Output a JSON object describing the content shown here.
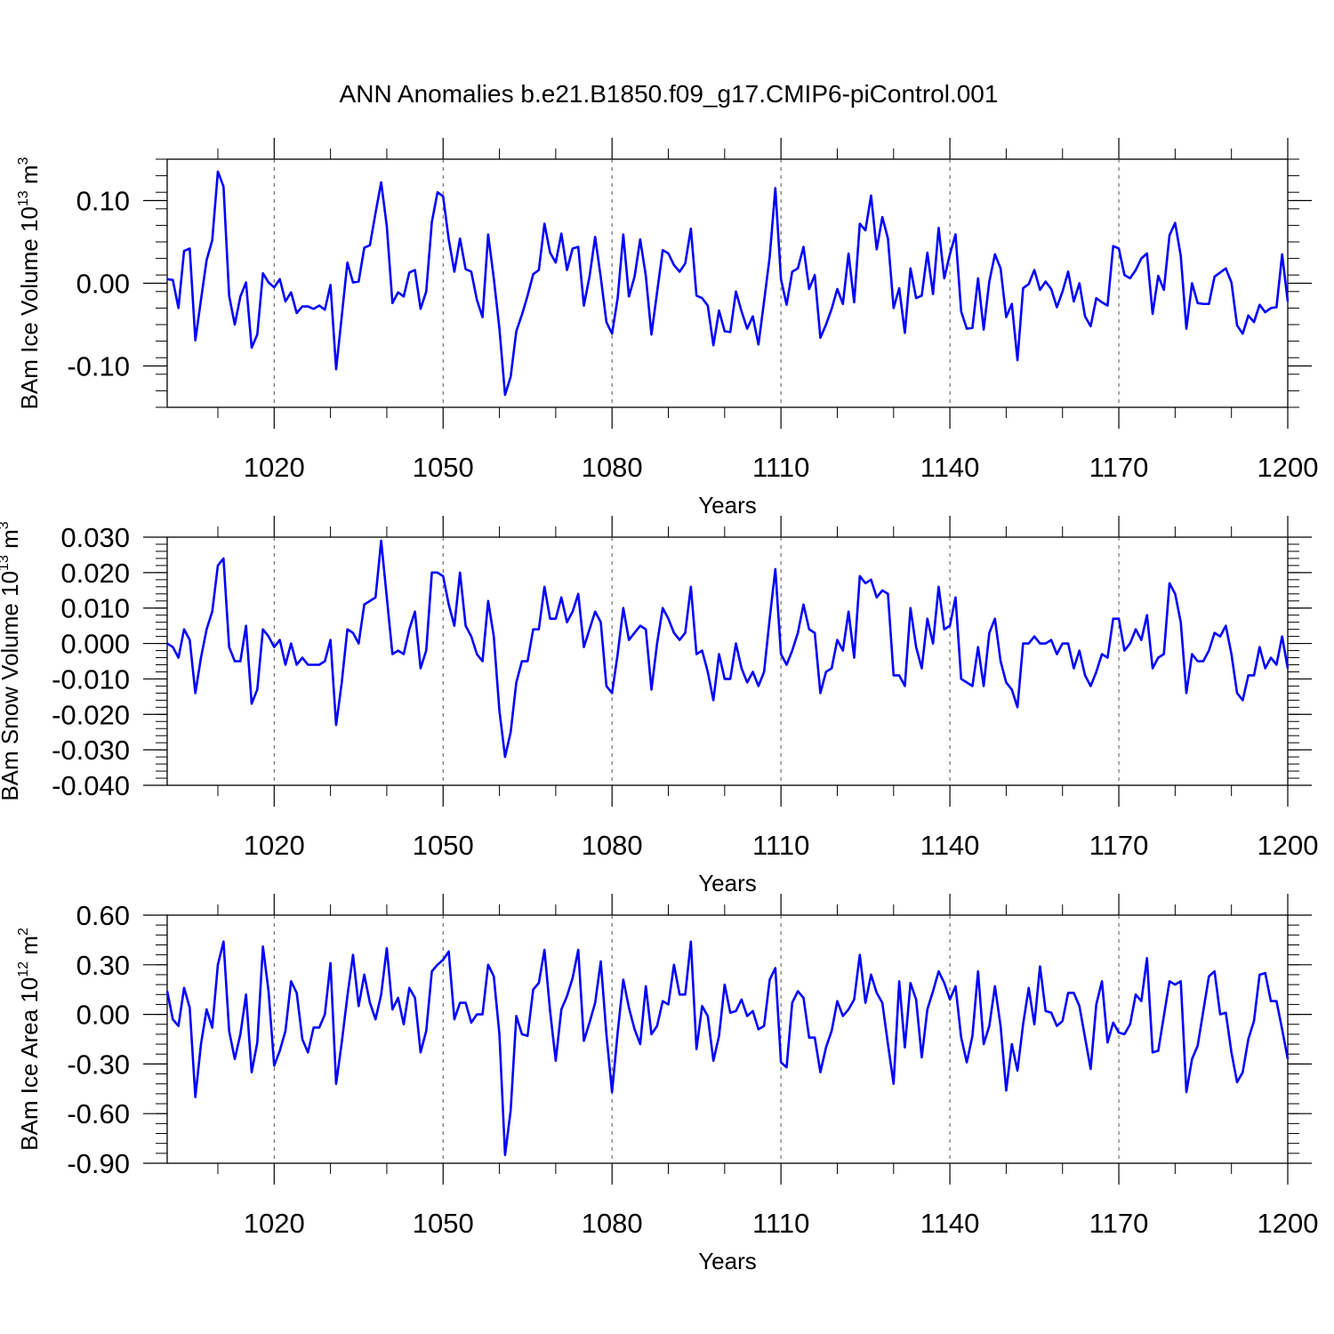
{
  "title": "ANN Anomalies b.e21.B1850.f09_g17.CMIP6-piControl.001",
  "colors": {
    "line": "#0000ff",
    "axis": "#000000",
    "grid": "#555555"
  },
  "chart_data": [
    {
      "type": "line",
      "name": "ice-volume",
      "ylabel_main": "BAm Ice Volume 10",
      "ylabel_exp": "13",
      "ylabel_unit": "m",
      "ylabel_unit_exp": "3",
      "xlabel": "Years",
      "xlim": [
        1001,
        1200
      ],
      "ylim": [
        -0.15,
        0.15
      ],
      "x_ticks": [
        "1020",
        "1050",
        "1080",
        "1110",
        "1140",
        "1170",
        "1200"
      ],
      "y_ticks": [
        "0.10",
        "0.00",
        "-0.10"
      ],
      "x_start": 1001,
      "series": [
        {
          "name": "BAm Ice Volume",
          "values": [
            0.005,
            0.004,
            -0.03,
            0.039,
            0.042,
            -0.069,
            -0.02,
            0.028,
            0.052,
            0.135,
            0.117,
            -0.015,
            -0.05,
            -0.016,
            0.001,
            -0.078,
            -0.062,
            0.012,
            0.001,
            -0.005,
            0.005,
            -0.022,
            -0.011,
            -0.036,
            -0.028,
            -0.028,
            -0.031,
            -0.027,
            -0.032,
            -0.002,
            -0.104,
            -0.04,
            0.025,
            0.001,
            0.002,
            0.043,
            0.046,
            0.085,
            0.122,
            0.069,
            -0.024,
            -0.011,
            -0.016,
            0.013,
            0.016,
            -0.031,
            -0.01,
            0.074,
            0.11,
            0.105,
            0.053,
            0.014,
            0.054,
            0.017,
            0.014,
            -0.02,
            -0.041,
            0.059,
            0.006,
            -0.055,
            -0.135,
            -0.113,
            -0.058,
            -0.038,
            -0.015,
            0.011,
            0.016,
            0.072,
            0.037,
            0.025,
            0.06,
            0.016,
            0.042,
            0.044,
            -0.027,
            0.008,
            0.056,
            0.007,
            -0.047,
            -0.061,
            -0.018,
            0.059,
            -0.016,
            0.008,
            0.053,
            0.009,
            -0.062,
            -0.011,
            0.04,
            0.036,
            0.022,
            0.014,
            0.024,
            0.066,
            -0.015,
            -0.018,
            -0.027,
            -0.075,
            -0.033,
            -0.058,
            -0.059,
            -0.01,
            -0.034,
            -0.055,
            -0.04,
            -0.074,
            -0.022,
            0.032,
            0.115,
            0.005,
            -0.026,
            0.014,
            0.018,
            0.044,
            -0.007,
            0.01,
            -0.066,
            -0.05,
            -0.031,
            -0.007,
            -0.025,
            0.036,
            -0.023,
            0.072,
            0.064,
            0.106,
            0.041,
            0.08,
            0.054,
            -0.03,
            -0.006,
            -0.06,
            0.018,
            -0.018,
            -0.015,
            0.037,
            -0.013,
            0.067,
            0.006,
            0.035,
            0.059,
            -0.034,
            -0.055,
            -0.054,
            0.006,
            -0.056,
            0.002,
            0.035,
            0.018,
            -0.041,
            -0.025,
            -0.093,
            -0.006,
            -0.001,
            0.016,
            -0.008,
            0.002,
            -0.007,
            -0.029,
            -0.01,
            0.014,
            -0.022,
            0.0,
            -0.04,
            -0.052,
            -0.018,
            -0.023,
            -0.027,
            0.045,
            0.042,
            0.01,
            0.006,
            0.016,
            0.03,
            0.036,
            -0.037,
            0.009,
            -0.008,
            0.058,
            0.073,
            0.033,
            -0.055,
            0.0,
            -0.024,
            -0.025,
            -0.025,
            0.008,
            0.013,
            0.018,
            0.001,
            -0.051,
            -0.061,
            -0.039,
            -0.047,
            -0.026,
            -0.035,
            -0.03,
            -0.029,
            0.035,
            -0.022
          ]
        }
      ]
    },
    {
      "type": "line",
      "name": "snow-volume",
      "ylabel_main": "BAm Snow Volume 10",
      "ylabel_exp": "13",
      "ylabel_unit": "m",
      "ylabel_unit_exp": "3",
      "xlabel": "Years",
      "xlim": [
        1001,
        1200
      ],
      "ylim": [
        -0.04,
        0.03
      ],
      "x_ticks": [
        "1020",
        "1050",
        "1080",
        "1110",
        "1140",
        "1170",
        "1200"
      ],
      "y_ticks": [
        "0.030",
        "0.020",
        "0.010",
        "0.000",
        "-0.010",
        "-0.020",
        "-0.030",
        "-0.040"
      ],
      "x_start": 1001,
      "series": [
        {
          "name": "BAm Snow Volume",
          "values": [
            0.0,
            -0.001,
            -0.004,
            0.004,
            0.001,
            -0.014,
            -0.004,
            0.004,
            0.009,
            0.022,
            0.024,
            -0.001,
            -0.005,
            -0.005,
            0.005,
            -0.017,
            -0.013,
            0.004,
            0.002,
            -0.001,
            0.001,
            -0.006,
            0.0,
            -0.006,
            -0.004,
            -0.006,
            -0.006,
            -0.006,
            -0.005,
            0.001,
            -0.023,
            -0.011,
            0.004,
            0.003,
            0.0,
            0.011,
            0.012,
            0.013,
            0.029,
            0.013,
            -0.003,
            -0.002,
            -0.003,
            0.004,
            0.009,
            -0.007,
            -0.002,
            0.02,
            0.02,
            0.019,
            0.011,
            0.005,
            0.02,
            0.005,
            0.002,
            -0.003,
            -0.005,
            0.012,
            0.002,
            -0.019,
            -0.032,
            -0.025,
            -0.011,
            -0.005,
            -0.005,
            0.004,
            0.004,
            0.016,
            0.007,
            0.007,
            0.013,
            0.006,
            0.009,
            0.014,
            -0.001,
            0.004,
            0.009,
            0.006,
            -0.012,
            -0.014,
            -0.003,
            0.01,
            0.001,
            0.003,
            0.005,
            0.004,
            -0.013,
            0.0,
            0.01,
            0.007,
            0.003,
            0.001,
            0.003,
            0.016,
            -0.003,
            -0.002,
            -0.008,
            -0.016,
            -0.003,
            -0.01,
            -0.01,
            0.0,
            -0.007,
            -0.011,
            -0.008,
            -0.012,
            -0.008,
            0.007,
            0.021,
            -0.003,
            -0.006,
            -0.002,
            0.003,
            0.011,
            0.004,
            0.003,
            -0.014,
            -0.008,
            -0.007,
            0.001,
            -0.002,
            0.009,
            -0.004,
            0.019,
            0.017,
            0.018,
            0.013,
            0.015,
            0.014,
            -0.009,
            -0.009,
            -0.012,
            0.01,
            -0.001,
            -0.007,
            0.007,
            0.0,
            0.016,
            0.004,
            0.005,
            0.013,
            -0.01,
            -0.011,
            -0.012,
            -0.001,
            -0.012,
            0.003,
            0.007,
            -0.005,
            -0.011,
            -0.013,
            -0.018,
            0.0,
            0.0,
            0.002,
            0.0,
            0.0,
            0.001,
            -0.003,
            0.0,
            0.0,
            -0.007,
            -0.002,
            -0.009,
            -0.012,
            -0.008,
            -0.003,
            -0.004,
            0.007,
            0.007,
            -0.002,
            0.0,
            0.004,
            0.001,
            0.008,
            -0.007,
            -0.004,
            -0.003,
            0.017,
            0.014,
            0.006,
            -0.014,
            -0.003,
            -0.005,
            -0.005,
            -0.002,
            0.003,
            0.002,
            0.005,
            -0.003,
            -0.014,
            -0.016,
            -0.009,
            -0.009,
            -0.001,
            -0.007,
            -0.004,
            -0.006,
            0.002,
            -0.007
          ]
        }
      ]
    },
    {
      "type": "line",
      "name": "ice-area",
      "ylabel_main": "BAm Ice Area 10",
      "ylabel_exp": "12",
      "ylabel_unit": "m",
      "ylabel_unit_exp": "2",
      "xlabel": "Years",
      "xlim": [
        1001,
        1200
      ],
      "ylim": [
        -0.9,
        0.6
      ],
      "x_ticks": [
        "1020",
        "1050",
        "1080",
        "1110",
        "1140",
        "1170",
        "1200"
      ],
      "y_ticks": [
        "0.60",
        "0.30",
        "0.00",
        "-0.30",
        "-0.60",
        "-0.90"
      ],
      "x_start": 1001,
      "series": [
        {
          "name": "BAm Ice Area",
          "values": [
            0.14,
            -0.03,
            -0.07,
            0.16,
            0.04,
            -0.5,
            -0.18,
            0.03,
            -0.08,
            0.3,
            0.44,
            -0.1,
            -0.27,
            -0.12,
            0.12,
            -0.35,
            -0.17,
            0.41,
            0.14,
            -0.31,
            -0.22,
            -0.1,
            0.2,
            0.13,
            -0.15,
            -0.23,
            -0.08,
            -0.08,
            0.0,
            0.31,
            -0.42,
            -0.17,
            0.11,
            0.36,
            0.05,
            0.24,
            0.07,
            -0.03,
            0.12,
            0.4,
            0.03,
            0.1,
            -0.06,
            0.16,
            0.1,
            -0.23,
            -0.1,
            0.26,
            0.3,
            0.33,
            0.38,
            -0.03,
            0.07,
            0.07,
            -0.05,
            0.0,
            0.0,
            0.3,
            0.23,
            -0.12,
            -0.85,
            -0.58,
            -0.01,
            -0.12,
            -0.13,
            0.15,
            0.19,
            0.39,
            0.02,
            -0.28,
            0.03,
            0.11,
            0.22,
            0.39,
            -0.16,
            -0.05,
            0.07,
            0.32,
            -0.12,
            -0.47,
            -0.11,
            0.21,
            0.04,
            -0.09,
            -0.18,
            0.17,
            -0.12,
            -0.07,
            0.08,
            0.06,
            0.3,
            0.12,
            0.12,
            0.44,
            -0.21,
            0.05,
            -0.01,
            -0.28,
            -0.13,
            0.18,
            0.01,
            0.02,
            0.09,
            -0.01,
            0.02,
            -0.09,
            -0.07,
            0.21,
            0.28,
            -0.29,
            -0.32,
            0.07,
            0.14,
            0.1,
            -0.14,
            -0.14,
            -0.35,
            -0.2,
            -0.1,
            0.08,
            -0.01,
            0.03,
            0.09,
            0.36,
            0.07,
            0.24,
            0.13,
            0.07,
            -0.18,
            -0.42,
            0.2,
            -0.2,
            0.19,
            0.09,
            -0.26,
            0.03,
            0.14,
            0.26,
            0.19,
            0.09,
            0.17,
            -0.14,
            -0.29,
            -0.13,
            0.26,
            -0.18,
            -0.07,
            0.17,
            -0.07,
            -0.46,
            -0.18,
            -0.34,
            -0.06,
            0.16,
            -0.06,
            0.29,
            0.02,
            0.01,
            -0.07,
            -0.04,
            0.13,
            0.13,
            0.05,
            -0.14,
            -0.33,
            0.06,
            0.2,
            -0.17,
            -0.05,
            -0.11,
            -0.12,
            -0.06,
            0.12,
            0.08,
            0.34,
            -0.23,
            -0.22,
            -0.01,
            0.2,
            0.18,
            0.2,
            -0.47,
            -0.27,
            -0.19,
            0.02,
            0.23,
            0.26,
            0.0,
            0.01,
            -0.23,
            -0.41,
            -0.35,
            -0.15,
            -0.04,
            0.24,
            0.25,
            0.08,
            0.08,
            -0.09,
            -0.27
          ]
        }
      ]
    }
  ]
}
